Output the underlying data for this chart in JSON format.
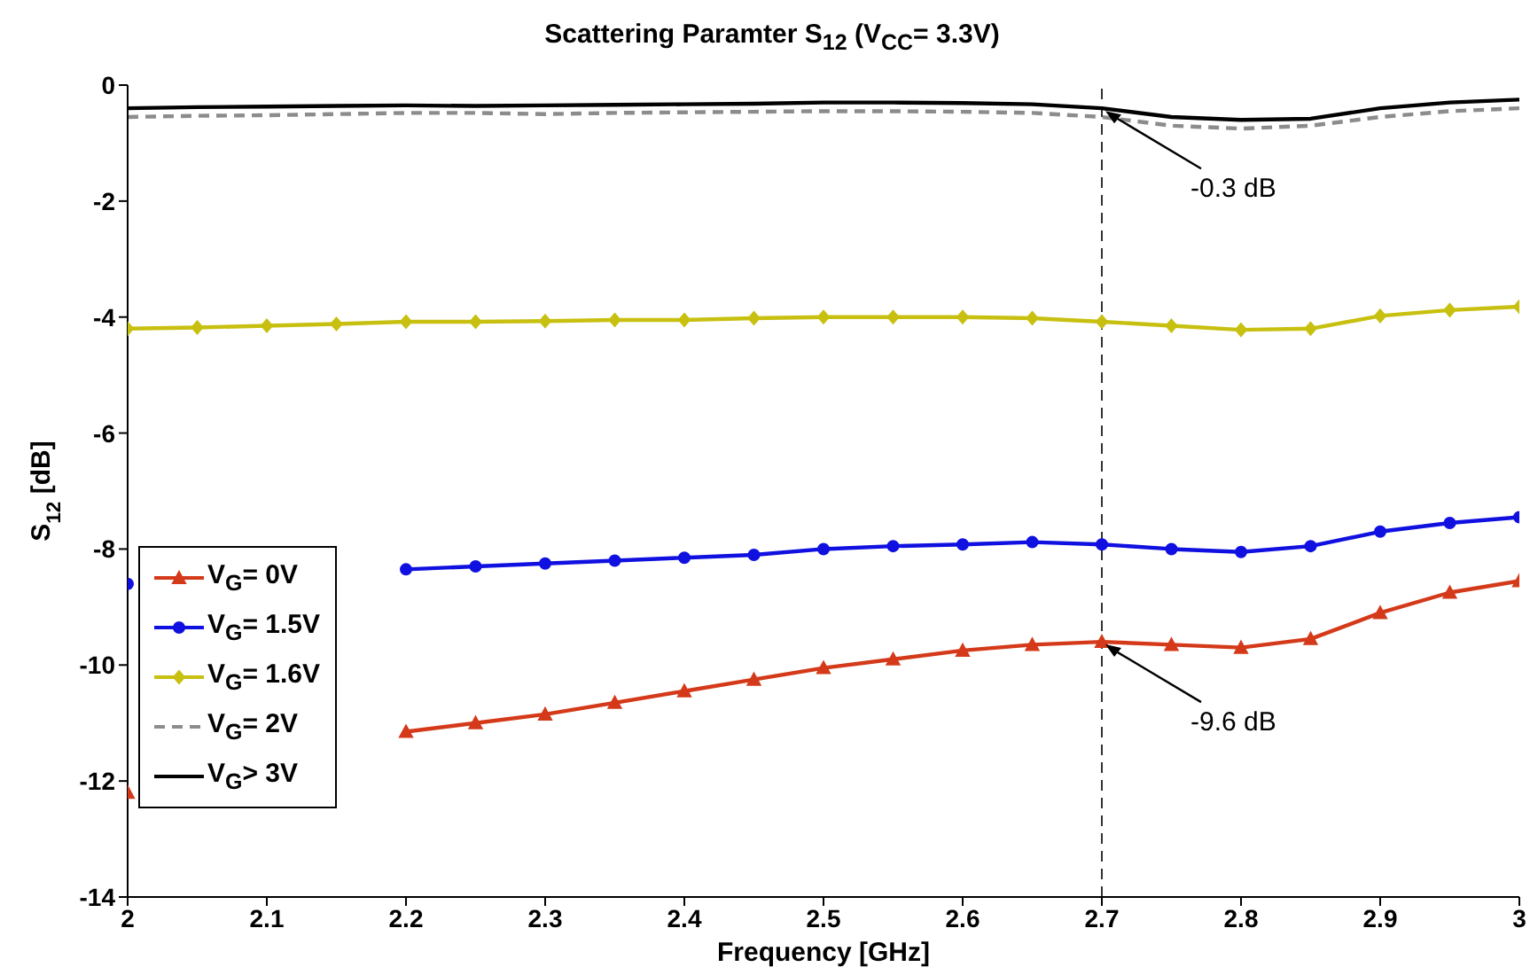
{
  "chart_data": {
    "type": "line",
    "title": "Scattering Paramter S$_{12}$  (V$_{CC}$= 3.3V)",
    "xlabel": "Frequency [GHz]",
    "ylabel": "S$_{12}$ [dB]",
    "x": [
      2.0,
      2.05,
      2.1,
      2.15,
      2.2,
      2.25,
      2.3,
      2.35,
      2.4,
      2.45,
      2.5,
      2.55,
      2.6,
      2.65,
      2.7,
      2.75,
      2.8,
      2.85,
      2.9,
      2.95,
      3.0
    ],
    "series": [
      {
        "name": "V$_{G}$= 0V",
        "color": "#d43a1a",
        "marker": "triangle",
        "values": [
          -12.2,
          null,
          null,
          null,
          -11.15,
          -11.0,
          -10.85,
          -10.65,
          -10.45,
          -10.25,
          -10.05,
          -9.9,
          -9.75,
          -9.65,
          -9.6,
          -9.65,
          -9.7,
          -9.55,
          -9.1,
          -8.75,
          -8.55
        ]
      },
      {
        "name": "V$_{G}$= 1.5V",
        "color": "#1010e0",
        "marker": "circle",
        "values": [
          -8.6,
          null,
          null,
          null,
          -8.35,
          -8.3,
          -8.25,
          -8.2,
          -8.15,
          -8.1,
          -8.0,
          -7.95,
          -7.92,
          -7.88,
          -7.92,
          -8.0,
          -8.05,
          -7.95,
          -7.7,
          -7.55,
          -7.45
        ]
      },
      {
        "name": "V$_{G}$= 1.6V",
        "color": "#c8c010",
        "marker": "diamond",
        "values": [
          -4.2,
          -4.18,
          -4.15,
          -4.12,
          -4.08,
          -4.08,
          -4.07,
          -4.05,
          -4.05,
          -4.02,
          -4.0,
          -4.0,
          -4.0,
          -4.02,
          -4.08,
          -4.15,
          -4.22,
          -4.2,
          -3.98,
          -3.88,
          -3.82
        ]
      },
      {
        "name": "V$_{G}$= 2V",
        "color": "#8c8c8c",
        "marker": "none",
        "line_style": "dashed",
        "values": [
          -0.55,
          -0.53,
          -0.52,
          -0.5,
          -0.48,
          -0.48,
          -0.5,
          -0.48,
          -0.47,
          -0.46,
          -0.45,
          -0.45,
          -0.46,
          -0.48,
          -0.55,
          -0.7,
          -0.75,
          -0.7,
          -0.55,
          -0.45,
          -0.4
        ]
      },
      {
        "name": "V$_{G}$> 3V",
        "color": "#000000",
        "marker": "none",
        "values": [
          -0.4,
          -0.38,
          -0.37,
          -0.36,
          -0.35,
          -0.36,
          -0.35,
          -0.34,
          -0.33,
          -0.32,
          -0.3,
          -0.3,
          -0.31,
          -0.33,
          -0.4,
          -0.55,
          -0.6,
          -0.58,
          -0.4,
          -0.3,
          -0.25
        ]
      }
    ],
    "xlim": [
      2,
      3
    ],
    "xticks": [
      2,
      2.1,
      2.2,
      2.3,
      2.4,
      2.5,
      2.6,
      2.7,
      2.8,
      2.9,
      3
    ],
    "ylim": [
      -14,
      0
    ],
    "yticks": [
      -14,
      -12,
      -10,
      -8,
      -6,
      -4,
      -2,
      0
    ],
    "grid": false,
    "legend": "bottom left",
    "ref_lines": [
      {
        "axis": "x",
        "value": 2.7,
        "color": "#333333",
        "line_style": "dashed"
      }
    ],
    "annotations": [
      {
        "text": "-0.3 dB",
        "x": 2.7,
        "y": -0.4
      },
      {
        "text": "-9.6 dB",
        "x": 2.7,
        "y": -9.6
      }
    ]
  }
}
